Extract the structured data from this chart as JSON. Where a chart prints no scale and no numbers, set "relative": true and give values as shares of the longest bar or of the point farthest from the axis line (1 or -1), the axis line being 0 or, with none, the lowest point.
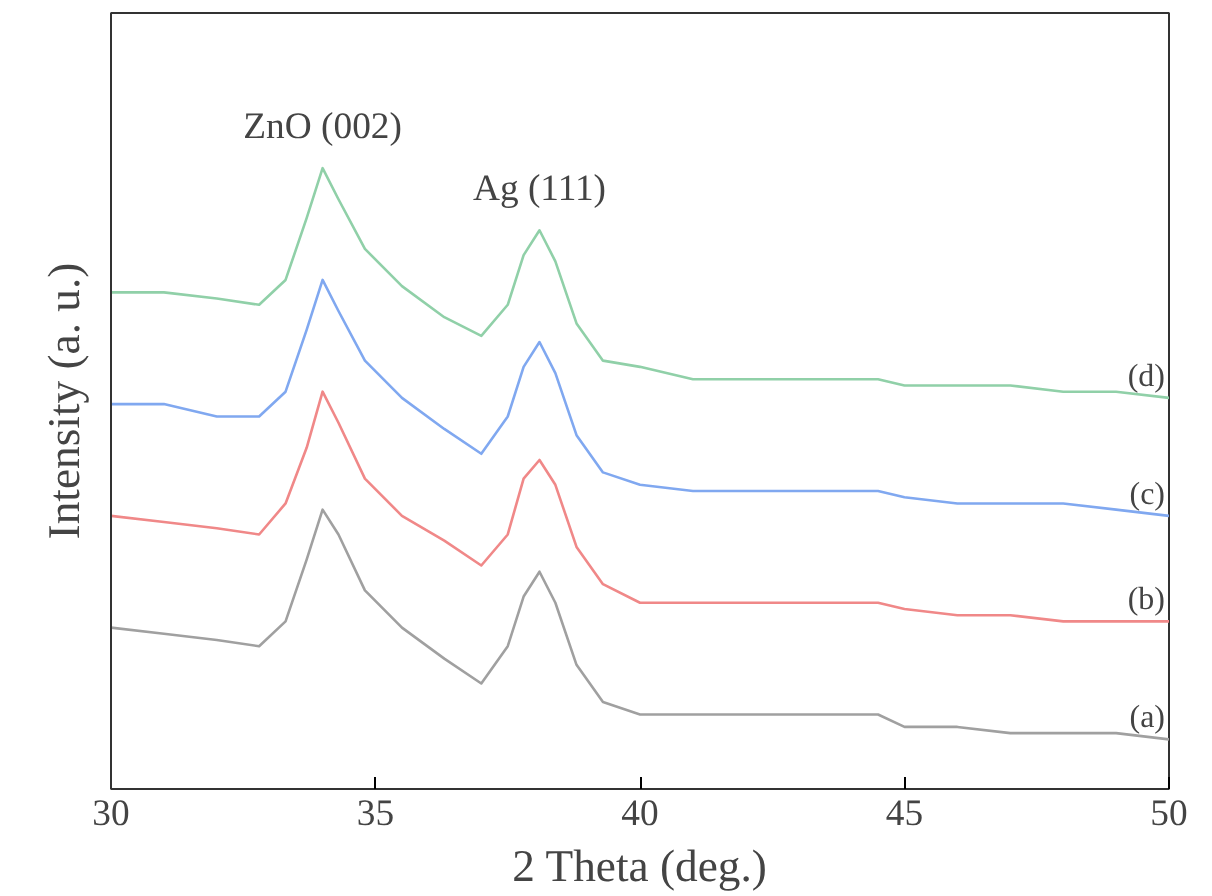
{
  "chart_data": {
    "type": "line",
    "relative": true,
    "xlabel": "2 Theta (deg.)",
    "ylabel": "Intensity (a. u.)",
    "xlim": [
      30,
      50
    ],
    "xticks": [
      30,
      35,
      40,
      45,
      50
    ],
    "tick_labels": "x",
    "grid": false,
    "legend": false,
    "marker": "none",
    "line_style": "solid",
    "x": [
      30,
      31,
      32,
      32.8,
      33.3,
      33.7,
      34.0,
      34.3,
      34.8,
      35.5,
      36.3,
      37.0,
      37.5,
      37.8,
      38.1,
      38.4,
      38.8,
      39.3,
      40,
      41,
      42,
      43,
      44,
      44.5,
      45,
      46,
      47,
      48,
      49,
      50
    ],
    "series": [
      {
        "name": "(a)",
        "color": "#a0a0a0",
        "values": [
          0.26,
          0.25,
          0.24,
          0.23,
          0.27,
          0.37,
          0.45,
          0.41,
          0.32,
          0.26,
          0.21,
          0.17,
          0.23,
          0.31,
          0.35,
          0.3,
          0.2,
          0.14,
          0.12,
          0.12,
          0.12,
          0.12,
          0.12,
          0.12,
          0.1,
          0.1,
          0.09,
          0.09,
          0.09,
          0.08
        ]
      },
      {
        "name": "(b)",
        "color": "#f08888",
        "values": [
          0.44,
          0.43,
          0.42,
          0.41,
          0.46,
          0.55,
          0.64,
          0.59,
          0.5,
          0.44,
          0.4,
          0.36,
          0.41,
          0.5,
          0.53,
          0.49,
          0.39,
          0.33,
          0.3,
          0.3,
          0.3,
          0.3,
          0.3,
          0.3,
          0.29,
          0.28,
          0.28,
          0.27,
          0.27,
          0.27
        ]
      },
      {
        "name": "(c)",
        "color": "#80a8f0",
        "values": [
          0.62,
          0.62,
          0.6,
          0.6,
          0.64,
          0.74,
          0.82,
          0.77,
          0.69,
          0.63,
          0.58,
          0.54,
          0.6,
          0.68,
          0.72,
          0.67,
          0.57,
          0.51,
          0.49,
          0.48,
          0.48,
          0.48,
          0.48,
          0.48,
          0.47,
          0.46,
          0.46,
          0.46,
          0.45,
          0.44
        ]
      },
      {
        "name": "(d)",
        "color": "#90d0a8",
        "values": [
          0.8,
          0.8,
          0.79,
          0.78,
          0.82,
          0.92,
          1.0,
          0.95,
          0.87,
          0.81,
          0.76,
          0.73,
          0.78,
          0.86,
          0.9,
          0.85,
          0.75,
          0.69,
          0.68,
          0.66,
          0.66,
          0.66,
          0.66,
          0.66,
          0.65,
          0.65,
          0.65,
          0.64,
          0.64,
          0.63
        ]
      }
    ],
    "annotations": [
      "ZnO (002)",
      "Ag (111)"
    ]
  }
}
